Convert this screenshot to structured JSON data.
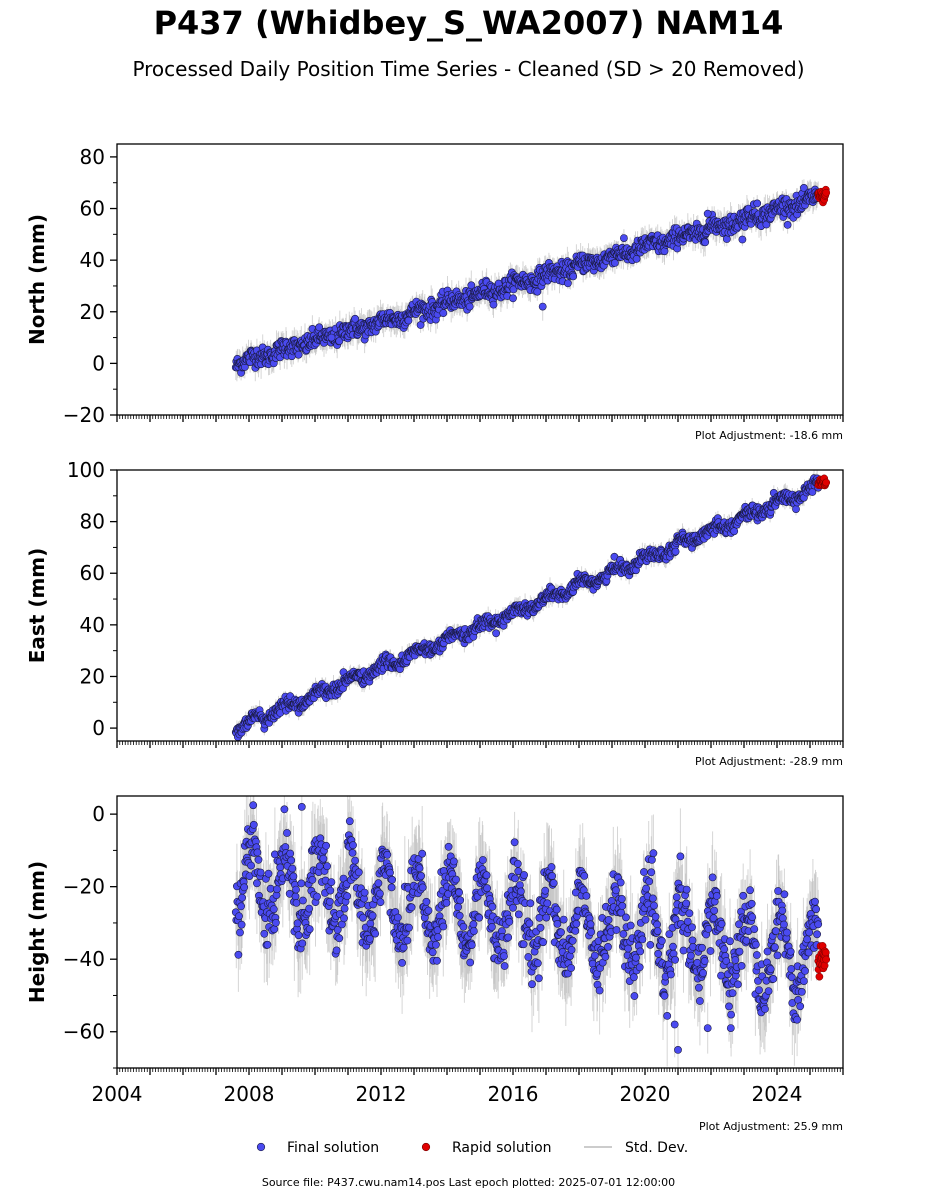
{
  "title": "P437 (Whidbey_S_WA2007) NAM14",
  "subtitle": "Processed Daily Position Time Series - Cleaned (SD > 20 Removed)",
  "footer": "Source file: P437.cwu.nam14.pos  Last epoch plotted: 2025-07-01 12:00:00",
  "colors": {
    "final": "#4a4af0",
    "final_edge": "#1a1a40",
    "rapid": "#e00000",
    "stddev": "#bbbbbb",
    "axis": "#000000"
  },
  "chart_data": [
    {
      "type": "scatter",
      "name": "north",
      "ylabel": "North (mm)",
      "xlim": [
        2004,
        2026
      ],
      "ylim": [
        -20,
        85
      ],
      "yticks": [
        -20,
        0,
        20,
        40,
        60,
        80
      ],
      "xticks": [],
      "adjustment_label": "Plot Adjustment: -18.6 mm",
      "start_year": 2007.6,
      "end_year": 2025.5,
      "trend": {
        "start": 0,
        "end": 65
      },
      "seasonal_amplitude": 1,
      "noise": 1.8,
      "rapid_start": 2025.25,
      "rapid_value": 65,
      "anomalies": [
        {
          "x": 2021.9,
          "y": 58
        },
        {
          "x": 2022.95,
          "y": 48
        },
        {
          "x": 2023.4,
          "y": 62
        },
        {
          "x": 2016.9,
          "y": 22
        },
        {
          "x": 2010.5,
          "y": 10
        }
      ]
    },
    {
      "type": "scatter",
      "name": "east",
      "ylabel": "East (mm)",
      "xlim": [
        2004,
        2026
      ],
      "ylim": [
        -5,
        100
      ],
      "yticks": [
        0,
        20,
        40,
        60,
        80,
        100
      ],
      "xticks": [],
      "adjustment_label": "Plot Adjustment: -28.9 mm",
      "start_year": 2007.6,
      "end_year": 2025.5,
      "trend": {
        "start": 0,
        "end": 95
      },
      "seasonal_amplitude": 1.5,
      "noise": 1.2,
      "rapid_start": 2025.25,
      "rapid_value": 95,
      "anomalies": []
    },
    {
      "type": "scatter",
      "name": "height",
      "ylabel": "Height (mm)",
      "xlim": [
        2004,
        2026
      ],
      "ylim": [
        -70,
        5
      ],
      "yticks": [
        -60,
        -40,
        -20,
        0
      ],
      "xticks": [
        2004,
        2008,
        2012,
        2016,
        2020,
        2024
      ],
      "adjustment_label": "Plot Adjustment: 25.9 mm",
      "start_year": 2007.6,
      "end_year": 2025.5,
      "trend": {
        "start": -18,
        "end": -40
      },
      "seasonal_amplitude": 10,
      "noise": 4.5,
      "rapid_start": 2025.25,
      "rapid_value": -40,
      "anomalies": [
        {
          "x": 2021.0,
          "y": -65
        },
        {
          "x": 2021.9,
          "y": -59
        },
        {
          "x": 2022.6,
          "y": -59
        },
        {
          "x": 2020.9,
          "y": -58
        },
        {
          "x": 2009.6,
          "y": 2
        }
      ]
    }
  ],
  "legend": {
    "placement": "bottom-center",
    "entries": [
      {
        "label": "Final solution",
        "kind": "final"
      },
      {
        "label": "Rapid solution",
        "kind": "rapid"
      },
      {
        "label": "Std. Dev.",
        "kind": "stddev"
      }
    ]
  }
}
